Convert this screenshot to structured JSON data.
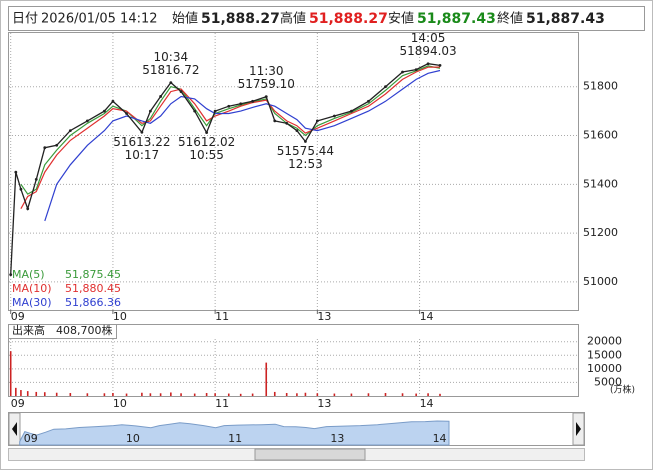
{
  "header": {
    "date_label": "日付",
    "datetime": "2026/01/05 14:12",
    "open_label": "始値",
    "open": "51,888.27",
    "high_label": "高値",
    "high": "51,888.27",
    "low_label": "安値",
    "low": "51,887.43",
    "close_label": "終値",
    "close": "51,887.43"
  },
  "chart_data": [
    {
      "type": "line",
      "x": [
        0,
        3,
        6,
        10,
        15,
        20,
        27,
        35,
        45,
        55,
        60,
        68,
        77,
        82,
        88,
        94,
        100,
        108,
        115,
        120,
        128,
        135,
        142,
        150,
        155,
        162,
        168,
        173,
        180,
        190,
        200,
        210,
        220,
        230,
        238,
        245,
        252
      ],
      "values": [
        51030,
        51450,
        51380,
        51300,
        51420,
        51550,
        51560,
        51620,
        51660,
        51700,
        51740,
        51690,
        51613.22,
        51700,
        51760,
        51816.72,
        51780,
        51700,
        51612.02,
        51700,
        51720,
        51730,
        51740,
        51759.1,
        51660,
        51650,
        51620,
        51575.44,
        51660,
        51680,
        51700,
        51740,
        51800,
        51860,
        51870,
        51894.03,
        51887.43
      ],
      "color": "#222222",
      "series": [
        {
          "name": "MA(5)",
          "latest": "51,875.45",
          "color": "#3a9a3a",
          "values": [
            null,
            null,
            51400,
            51360,
            51380,
            51480,
            51540,
            51600,
            51650,
            51690,
            51720,
            51700,
            51640,
            51670,
            51740,
            51800,
            51790,
            51710,
            51640,
            51690,
            51710,
            51725,
            51738,
            51750,
            51690,
            51650,
            51630,
            51600,
            51640,
            51670,
            51695,
            51730,
            51785,
            51845,
            51865,
            51885,
            51875.45
          ]
        },
        {
          "name": "MA(10)",
          "latest": "51,880.45",
          "color": "#e03030",
          "values": [
            null,
            null,
            51300,
            51350,
            51370,
            51450,
            51520,
            51580,
            51630,
            51680,
            51710,
            51700,
            51650,
            51660,
            51720,
            51780,
            51790,
            51730,
            51660,
            51680,
            51700,
            51720,
            51735,
            51745,
            51700,
            51660,
            51640,
            51610,
            51630,
            51660,
            51690,
            51720,
            51770,
            51830,
            51860,
            51880,
            51880.45
          ]
        },
        {
          "name": "MA(30)",
          "latest": "51,866.36",
          "color": "#3040d0",
          "values": [
            null,
            null,
            null,
            null,
            null,
            51250,
            51400,
            51480,
            51560,
            51620,
            51660,
            51680,
            51660,
            51650,
            51680,
            51730,
            51760,
            51750,
            51710,
            51690,
            51690,
            51700,
            51715,
            51730,
            51720,
            51690,
            51665,
            51630,
            51620,
            51640,
            51670,
            51700,
            51740,
            51790,
            51830,
            51855,
            51866.36
          ]
        }
      ],
      "annotations": [
        {
          "x": 94,
          "time": "10:34",
          "value": 51816.72,
          "label": "51816.72",
          "kind": "high"
        },
        {
          "x": 77,
          "time": "10:17",
          "value": 51613.22,
          "label": "51613.22",
          "kind": "low"
        },
        {
          "x": 115,
          "time": "10:55",
          "value": 51612.02,
          "label": "51612.02",
          "kind": "low"
        },
        {
          "x": 150,
          "time": "11:30",
          "value": 51759.1,
          "label": "51759.10",
          "kind": "high"
        },
        {
          "x": 173,
          "time": "12:53",
          "value": 51575.44,
          "label": "51575.44",
          "kind": "low"
        },
        {
          "x": 245,
          "time": "14:05",
          "value": 51894.03,
          "label": "51894.03",
          "kind": "high"
        }
      ],
      "xlim": [
        -1,
        333
      ],
      "xticks": [
        {
          "value": 0,
          "label": "09"
        },
        {
          "value": 60,
          "label": "10"
        },
        {
          "value": 120,
          "label": "11"
        },
        {
          "value": 180,
          "label": "13"
        },
        {
          "value": 240,
          "label": "14"
        }
      ],
      "ylim": [
        50885,
        52020
      ],
      "yticks": [
        51000,
        51200,
        51400,
        51600,
        51800
      ],
      "grid": true
    },
    {
      "type": "bar",
      "label": "出来高",
      "total": "408,700株",
      "unit": "(万株)",
      "values": [
        16500,
        3000,
        2200,
        1800,
        1500,
        1400,
        1200,
        1100,
        1000,
        1000,
        1100,
        900,
        1200,
        1000,
        1000,
        1300,
        1000,
        900,
        1100,
        1000,
        900,
        800,
        900,
        12300,
        1500,
        1100,
        1000,
        1200,
        1000,
        900,
        900,
        1000,
        1100,
        1000,
        900,
        1000,
        800
      ],
      "color": "#cc2222",
      "ylim": [
        0,
        26150
      ],
      "yticks": [
        5000,
        10000,
        15000,
        20000
      ],
      "grid": true
    }
  ]
}
